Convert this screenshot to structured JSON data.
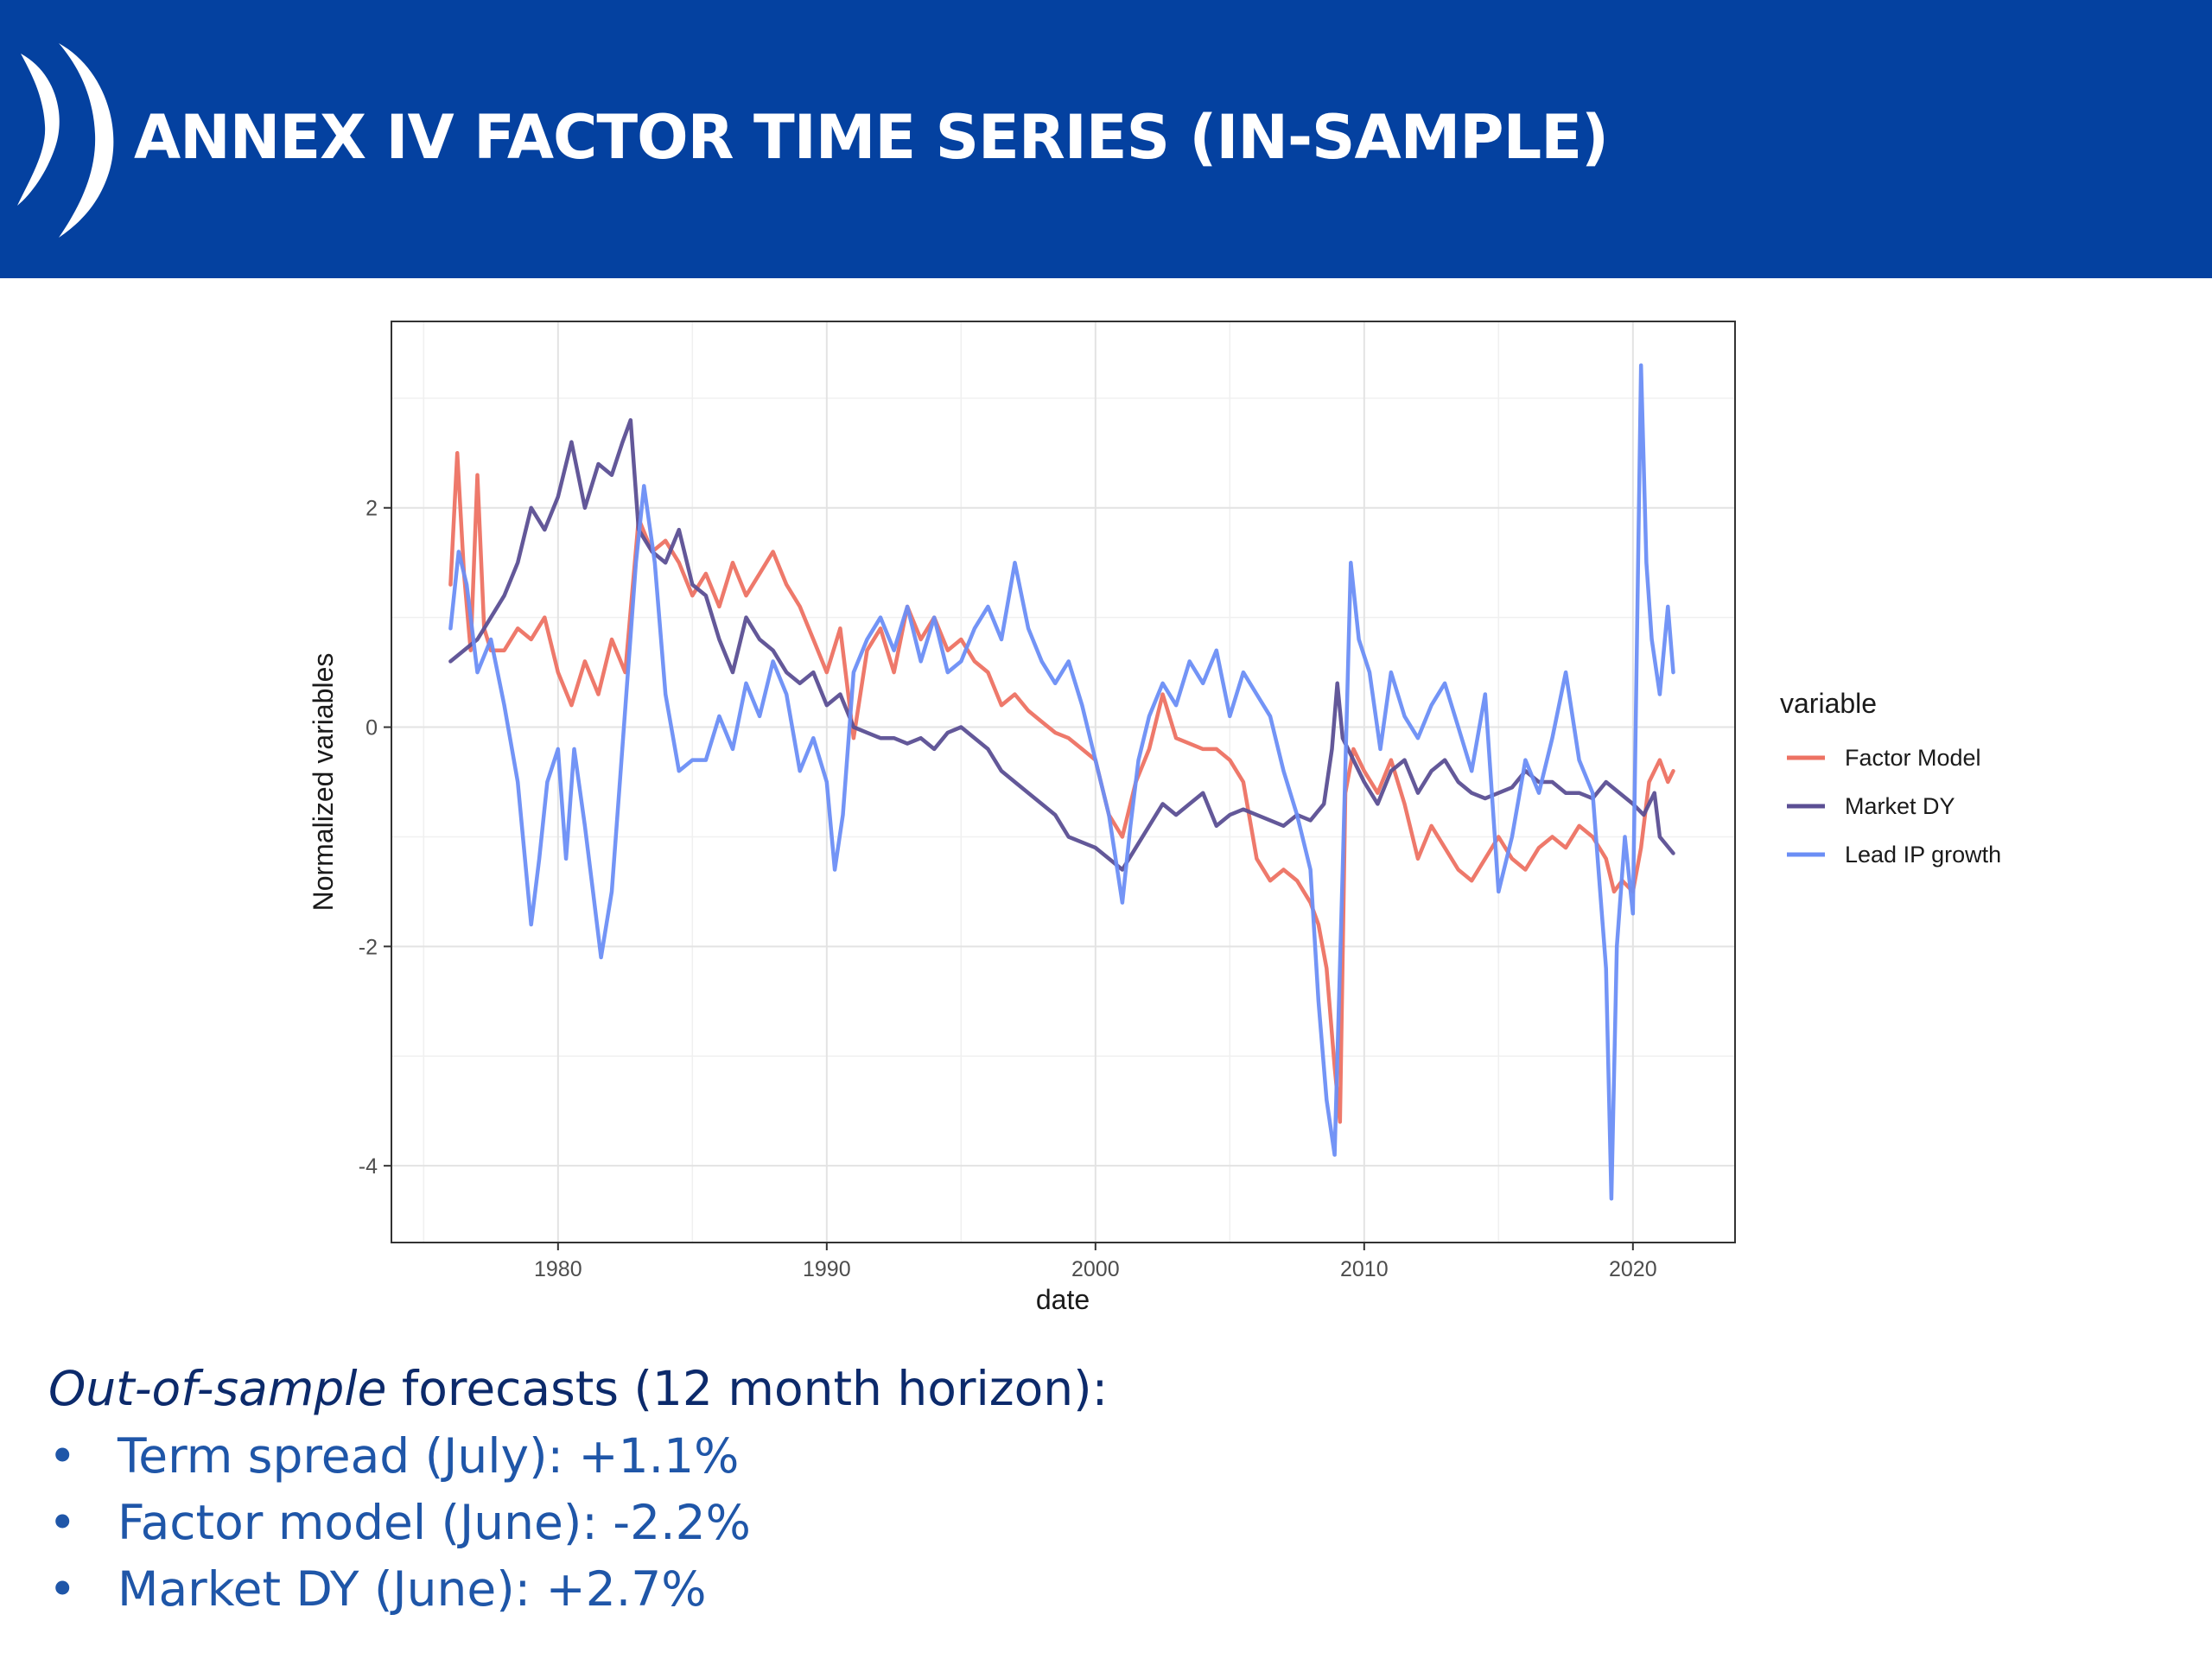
{
  "slide": {
    "title": "ANNEX IV FACTOR TIME SERIES (IN-SAMPLE)",
    "header_color": "#0441a0",
    "logo_icon": "double-parenthesis-logo-icon"
  },
  "notes": {
    "intro_italic": "Out-of-sample",
    "intro_rest": " forecasts (12 month horizon):",
    "bullet_glyph": "•",
    "items": [
      "Term spread (July): +1.1%",
      "Factor model (June): -2.2%",
      "Market DY (June): +2.7%"
    ]
  },
  "chart_data": {
    "type": "line",
    "title": "",
    "xlabel": "date",
    "ylabel": "Normalized variables",
    "xlim": [
      1973.8,
      2023.8
    ],
    "ylim": [
      -4.7,
      3.7
    ],
    "x_ticks": [
      1980,
      1990,
      2000,
      2010,
      2020
    ],
    "x_tick_labels": [
      "1980",
      "1990",
      "2000",
      "2010",
      "2020"
    ],
    "y_ticks": [
      -4,
      -2,
      0,
      2
    ],
    "y_tick_labels": [
      "-4",
      "-2",
      "0",
      "2"
    ],
    "grid": true,
    "legend": {
      "title": "variable",
      "position": "right"
    },
    "series": [
      {
        "name": "Factor Model",
        "color": "#ed7263",
        "x": [
          1976.0,
          1976.25,
          1976.5,
          1976.75,
          1977.0,
          1977.25,
          1977.5,
          1978.0,
          1978.5,
          1979.0,
          1979.5,
          1980.0,
          1980.5,
          1981.0,
          1981.5,
          1982.0,
          1982.5,
          1983.0,
          1983.5,
          1984.0,
          1984.5,
          1985.0,
          1985.5,
          1986.0,
          1986.5,
          1987.0,
          1987.5,
          1988.0,
          1988.5,
          1989.0,
          1989.5,
          1990.0,
          1990.5,
          1991.0,
          1991.5,
          1992.0,
          1992.5,
          1993.0,
          1993.5,
          1994.0,
          1994.5,
          1995.0,
          1995.5,
          1996.0,
          1996.5,
          1997.0,
          1997.5,
          1998.0,
          1998.5,
          1999.0,
          1999.5,
          2000.0,
          2000.5,
          2001.0,
          2001.5,
          2002.0,
          2002.5,
          2003.0,
          2003.5,
          2004.0,
          2004.5,
          2005.0,
          2005.5,
          2006.0,
          2006.5,
          2007.0,
          2007.5,
          2008.0,
          2008.3,
          2008.6,
          2008.9,
          2009.1,
          2009.3,
          2009.6,
          2010.0,
          2010.5,
          2011.0,
          2011.5,
          2012.0,
          2012.5,
          2013.0,
          2013.5,
          2014.0,
          2014.5,
          2015.0,
          2015.5,
          2016.0,
          2016.5,
          2017.0,
          2017.5,
          2018.0,
          2018.5,
          2019.0,
          2019.3,
          2019.6,
          2020.0,
          2020.3,
          2020.6,
          2020.8,
          2021.0,
          2021.3,
          2021.5
        ],
        "y": [
          1.3,
          2.5,
          1.4,
          0.7,
          2.3,
          0.9,
          0.7,
          0.7,
          0.9,
          0.8,
          1.0,
          0.5,
          0.2,
          0.6,
          0.3,
          0.8,
          0.5,
          1.9,
          1.6,
          1.7,
          1.5,
          1.2,
          1.4,
          1.1,
          1.5,
          1.2,
          1.4,
          1.6,
          1.3,
          1.1,
          0.8,
          0.5,
          0.9,
          -0.1,
          0.7,
          0.9,
          0.5,
          1.1,
          0.8,
          1.0,
          0.7,
          0.8,
          0.6,
          0.5,
          0.2,
          0.3,
          0.15,
          0.05,
          -0.05,
          -0.1,
          -0.2,
          -0.3,
          -0.8,
          -1.0,
          -0.5,
          -0.2,
          0.3,
          -0.1,
          -0.15,
          -0.2,
          -0.2,
          -0.3,
          -0.5,
          -1.2,
          -1.4,
          -1.3,
          -1.4,
          -1.6,
          -1.8,
          -2.2,
          -3.1,
          -3.6,
          -0.6,
          -0.2,
          -0.4,
          -0.6,
          -0.3,
          -0.7,
          -1.2,
          -0.9,
          -1.1,
          -1.3,
          -1.4,
          -1.2,
          -1.0,
          -1.2,
          -1.3,
          -1.1,
          -1.0,
          -1.1,
          -0.9,
          -1.0,
          -1.2,
          -1.5,
          -1.4,
          -1.5,
          -1.1,
          -0.5,
          -0.4,
          -0.3,
          -0.5,
          -0.4
        ]
      },
      {
        "name": "Market DY",
        "color": "#5b4f94",
        "x": [
          1976.0,
          1977.0,
          1978.0,
          1978.5,
          1979.0,
          1979.5,
          1980.0,
          1980.5,
          1981.0,
          1981.5,
          1982.0,
          1982.4,
          1982.7,
          1983.0,
          1983.5,
          1984.0,
          1984.5,
          1985.0,
          1985.5,
          1986.0,
          1986.5,
          1987.0,
          1987.5,
          1988.0,
          1988.5,
          1989.0,
          1989.5,
          1990.0,
          1990.5,
          1991.0,
          1991.5,
          1992.0,
          1992.5,
          1993.0,
          1993.5,
          1994.0,
          1994.5,
          1995.0,
          1995.5,
          1996.0,
          1996.5,
          1997.0,
          1997.5,
          1998.0,
          1998.5,
          1999.0,
          1999.5,
          2000.0,
          2000.5,
          2001.0,
          2001.5,
          2002.0,
          2002.5,
          2003.0,
          2003.5,
          2004.0,
          2004.5,
          2005.0,
          2005.5,
          2006.0,
          2006.5,
          2007.0,
          2007.5,
          2008.0,
          2008.5,
          2008.8,
          2009.0,
          2009.2,
          2009.6,
          2010.0,
          2010.5,
          2011.0,
          2011.5,
          2012.0,
          2012.5,
          2013.0,
          2013.5,
          2014.0,
          2014.5,
          2015.0,
          2015.5,
          2016.0,
          2016.5,
          2017.0,
          2017.5,
          2018.0,
          2018.5,
          2019.0,
          2019.5,
          2020.0,
          2020.4,
          2020.8,
          2021.0,
          2021.5
        ],
        "y": [
          0.6,
          0.8,
          1.2,
          1.5,
          2.0,
          1.8,
          2.1,
          2.6,
          2.0,
          2.4,
          2.3,
          2.6,
          2.8,
          1.8,
          1.6,
          1.5,
          1.8,
          1.3,
          1.2,
          0.8,
          0.5,
          1.0,
          0.8,
          0.7,
          0.5,
          0.4,
          0.5,
          0.2,
          0.3,
          0.0,
          -0.05,
          -0.1,
          -0.1,
          -0.15,
          -0.1,
          -0.2,
          -0.05,
          0.0,
          -0.1,
          -0.2,
          -0.4,
          -0.5,
          -0.6,
          -0.7,
          -0.8,
          -1.0,
          -1.05,
          -1.1,
          -1.2,
          -1.3,
          -1.1,
          -0.9,
          -0.7,
          -0.8,
          -0.7,
          -0.6,
          -0.9,
          -0.8,
          -0.75,
          -0.8,
          -0.85,
          -0.9,
          -0.8,
          -0.85,
          -0.7,
          -0.2,
          0.4,
          -0.1,
          -0.3,
          -0.5,
          -0.7,
          -0.4,
          -0.3,
          -0.6,
          -0.4,
          -0.3,
          -0.5,
          -0.6,
          -0.65,
          -0.6,
          -0.55,
          -0.4,
          -0.5,
          -0.5,
          -0.6,
          -0.6,
          -0.65,
          -0.5,
          -0.6,
          -0.7,
          -0.8,
          -0.6,
          -1.0,
          -1.15
        ]
      },
      {
        "name": "Lead IP growth",
        "color": "#6b8ef5",
        "x": [
          1976.0,
          1976.3,
          1976.6,
          1977.0,
          1977.5,
          1978.0,
          1978.5,
          1979.0,
          1979.3,
          1979.6,
          1980.0,
          1980.3,
          1980.6,
          1981.0,
          1981.3,
          1981.6,
          1982.0,
          1982.3,
          1982.6,
          1982.9,
          1983.2,
          1983.6,
          1984.0,
          1984.5,
          1985.0,
          1985.5,
          1986.0,
          1986.5,
          1987.0,
          1987.5,
          1988.0,
          1988.5,
          1989.0,
          1989.5,
          1990.0,
          1990.3,
          1990.6,
          1991.0,
          1991.5,
          1992.0,
          1992.5,
          1993.0,
          1993.5,
          1994.0,
          1994.5,
          1995.0,
          1995.5,
          1996.0,
          1996.5,
          1997.0,
          1997.5,
          1998.0,
          1998.5,
          1999.0,
          1999.5,
          2000.0,
          2000.5,
          2001.0,
          2001.3,
          2001.6,
          2002.0,
          2002.5,
          2003.0,
          2003.5,
          2004.0,
          2004.5,
          2005.0,
          2005.5,
          2006.0,
          2006.5,
          2007.0,
          2007.5,
          2008.0,
          2008.3,
          2008.6,
          2008.9,
          2009.2,
          2009.5,
          2009.8,
          2010.2,
          2010.6,
          2011.0,
          2011.5,
          2012.0,
          2012.5,
          2013.0,
          2013.5,
          2014.0,
          2014.5,
          2015.0,
          2015.5,
          2016.0,
          2016.5,
          2017.0,
          2017.5,
          2018.0,
          2018.5,
          2019.0,
          2019.2,
          2019.4,
          2019.7,
          2020.0,
          2020.15,
          2020.3,
          2020.5,
          2020.7,
          2021.0,
          2021.3,
          2021.5
        ],
        "y": [
          0.9,
          1.6,
          1.3,
          0.5,
          0.8,
          0.2,
          -0.5,
          -1.8,
          -1.2,
          -0.5,
          -0.2,
          -1.2,
          -0.2,
          -0.9,
          -1.5,
          -2.1,
          -1.5,
          -0.5,
          0.5,
          1.5,
          2.2,
          1.5,
          0.3,
          -0.4,
          -0.3,
          -0.3,
          0.1,
          -0.2,
          0.4,
          0.1,
          0.6,
          0.3,
          -0.4,
          -0.1,
          -0.5,
          -1.3,
          -0.8,
          0.5,
          0.8,
          1.0,
          0.7,
          1.1,
          0.6,
          1.0,
          0.5,
          0.6,
          0.9,
          1.1,
          0.8,
          1.5,
          0.9,
          0.6,
          0.4,
          0.6,
          0.2,
          -0.3,
          -0.8,
          -1.6,
          -0.9,
          -0.3,
          0.1,
          0.4,
          0.2,
          0.6,
          0.4,
          0.7,
          0.1,
          0.5,
          0.3,
          0.1,
          -0.4,
          -0.8,
          -1.3,
          -2.5,
          -3.4,
          -3.9,
          -1.3,
          1.5,
          0.8,
          0.5,
          -0.2,
          0.5,
          0.1,
          -0.1,
          0.2,
          0.4,
          0.0,
          -0.4,
          0.3,
          -1.5,
          -1.0,
          -0.3,
          -0.6,
          -0.1,
          0.5,
          -0.3,
          -0.6,
          -2.2,
          -4.3,
          -2.0,
          -1.0,
          -1.7,
          0.8,
          3.3,
          1.5,
          0.8,
          0.3,
          1.1,
          0.5
        ]
      }
    ]
  }
}
